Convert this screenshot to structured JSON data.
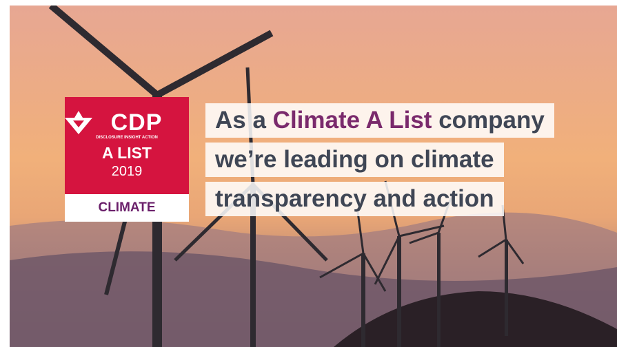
{
  "badge": {
    "logo": "CDP",
    "tagline": "DISCLOSURE INSIGHT ACTION",
    "list": "A LIST",
    "year": "2019",
    "theme": "CLIMATE"
  },
  "headline": {
    "line1": {
      "before": "As a",
      "highlight": "Climate A List",
      "after": "company"
    },
    "line2": "we’re leading on climate",
    "line3": "transparency and action"
  }
}
